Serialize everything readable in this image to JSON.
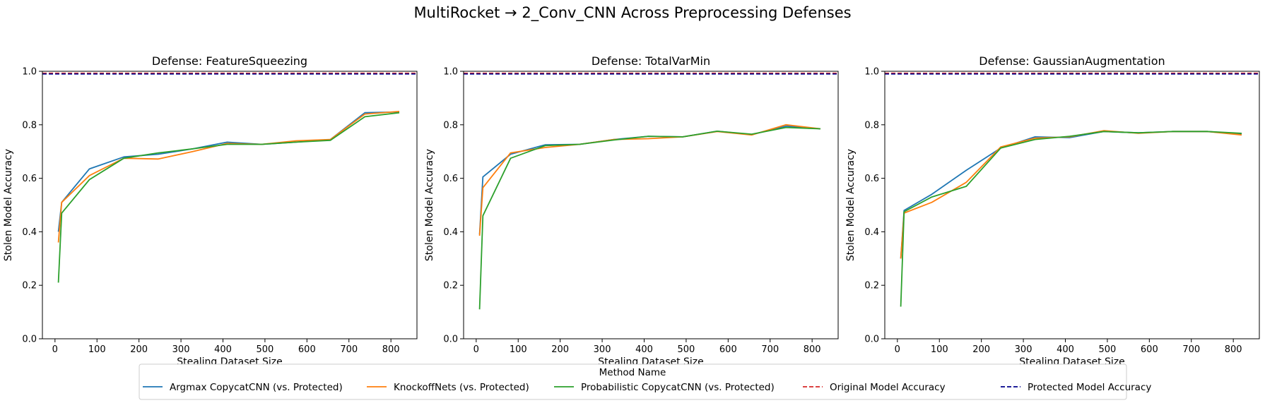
{
  "suptitle": "MultiRocket → 2_Conv_CNN Across Preprocessing Defenses",
  "chart_data": [
    {
      "type": "line",
      "title": "Defense: FeatureSqueezing",
      "xlabel": "Stealing Dataset Size",
      "ylabel": "Stolen Model Accuracy",
      "xlim": [
        -30,
        862
      ],
      "ylim": [
        0,
        1
      ],
      "xticks": [
        0,
        100,
        200,
        300,
        400,
        500,
        600,
        700,
        800
      ],
      "yticks": [
        "0.0",
        "0.2",
        "0.4",
        "0.6",
        "0.8",
        "1.0"
      ],
      "hlines": [
        {
          "name": "Original Model Accuracy",
          "y": 0.993
        },
        {
          "name": "Protected Model Accuracy",
          "y": 0.99
        }
      ],
      "series": [
        {
          "name": "Argmax CopycatCNN (vs. Protected)",
          "x": [
            8,
            16,
            82,
            164,
            246,
            328,
            410,
            492,
            574,
            656,
            738,
            820
          ],
          "y": [
            0.4,
            0.51,
            0.635,
            0.68,
            0.69,
            0.71,
            0.735,
            0.727,
            0.735,
            0.745,
            0.845,
            0.848
          ]
        },
        {
          "name": "KnockoffNets (vs. Protected)",
          "x": [
            8,
            16,
            82,
            164,
            246,
            328,
            410,
            492,
            574,
            656,
            738,
            820
          ],
          "y": [
            0.36,
            0.51,
            0.61,
            0.675,
            0.672,
            0.7,
            0.73,
            0.727,
            0.74,
            0.745,
            0.84,
            0.85
          ]
        },
        {
          "name": "Probabilistic CopycatCNN (vs. Protected)",
          "x": [
            8,
            16,
            82,
            164,
            246,
            328,
            410,
            492,
            574,
            656,
            738,
            820
          ],
          "y": [
            0.21,
            0.47,
            0.595,
            0.675,
            0.695,
            0.71,
            0.727,
            0.727,
            0.735,
            0.742,
            0.83,
            0.845
          ]
        }
      ]
    },
    {
      "type": "line",
      "title": "Defense: TotalVarMin",
      "xlabel": "Stealing Dataset Size",
      "ylabel": "Stolen Model Accuracy",
      "xlim": [
        -30,
        862
      ],
      "ylim": [
        0,
        1
      ],
      "xticks": [
        0,
        100,
        200,
        300,
        400,
        500,
        600,
        700,
        800
      ],
      "yticks": [
        "0.0",
        "0.2",
        "0.4",
        "0.6",
        "0.8",
        "1.0"
      ],
      "hlines": [
        {
          "name": "Original Model Accuracy",
          "y": 0.993
        },
        {
          "name": "Protected Model Accuracy",
          "y": 0.99
        }
      ],
      "series": [
        {
          "name": "Argmax CopycatCNN (vs. Protected)",
          "x": [
            8,
            16,
            82,
            164,
            246,
            328,
            410,
            492,
            574,
            656,
            738,
            820
          ],
          "y": [
            0.39,
            0.605,
            0.69,
            0.725,
            0.727,
            0.745,
            0.757,
            0.755,
            0.776,
            0.763,
            0.795,
            0.785
          ]
        },
        {
          "name": "KnockoffNets (vs. Protected)",
          "x": [
            8,
            16,
            82,
            164,
            246,
            328,
            410,
            492,
            574,
            656,
            738,
            820
          ],
          "y": [
            0.385,
            0.565,
            0.695,
            0.715,
            0.727,
            0.745,
            0.748,
            0.755,
            0.775,
            0.762,
            0.8,
            0.785
          ]
        },
        {
          "name": "Probabilistic CopycatCNN (vs. Protected)",
          "x": [
            8,
            16,
            82,
            164,
            246,
            328,
            410,
            492,
            574,
            656,
            738,
            820
          ],
          "y": [
            0.11,
            0.46,
            0.675,
            0.722,
            0.727,
            0.743,
            0.757,
            0.755,
            0.776,
            0.765,
            0.79,
            0.785
          ]
        }
      ]
    },
    {
      "type": "line",
      "title": "Defense: GaussianAugmentation",
      "xlabel": "Stealing Dataset Size",
      "ylabel": "Stolen Model Accuracy",
      "xlim": [
        -30,
        862
      ],
      "ylim": [
        0,
        1
      ],
      "xticks": [
        0,
        100,
        200,
        300,
        400,
        500,
        600,
        700,
        800
      ],
      "yticks": [
        "0.0",
        "0.2",
        "0.4",
        "0.6",
        "0.8",
        "1.0"
      ],
      "hlines": [
        {
          "name": "Original Model Accuracy",
          "y": 0.993
        },
        {
          "name": "Protected Model Accuracy",
          "y": 0.99
        }
      ],
      "series": [
        {
          "name": "Argmax CopycatCNN (vs. Protected)",
          "x": [
            8,
            16,
            82,
            164,
            246,
            328,
            410,
            492,
            574,
            656,
            738,
            820
          ],
          "y": [
            0.3,
            0.48,
            0.54,
            0.63,
            0.713,
            0.755,
            0.752,
            0.775,
            0.77,
            0.775,
            0.775,
            0.765
          ]
        },
        {
          "name": "KnockoffNets (vs. Protected)",
          "x": [
            8,
            16,
            82,
            164,
            246,
            328,
            410,
            492,
            574,
            656,
            738,
            820
          ],
          "y": [
            0.3,
            0.47,
            0.51,
            0.585,
            0.717,
            0.75,
            0.755,
            0.778,
            0.768,
            0.775,
            0.775,
            0.762
          ]
        },
        {
          "name": "Probabilistic CopycatCNN (vs. Protected)",
          "x": [
            8,
            16,
            82,
            164,
            246,
            328,
            410,
            492,
            574,
            656,
            738,
            820
          ],
          "y": [
            0.12,
            0.475,
            0.53,
            0.57,
            0.713,
            0.745,
            0.757,
            0.775,
            0.77,
            0.775,
            0.775,
            0.768
          ]
        }
      ]
    }
  ],
  "legend": {
    "title": "Method Name",
    "placement": "bottom-center",
    "items": [
      {
        "label": "Argmax CopycatCNN (vs. Protected)",
        "color": "#1f77b4",
        "style": "solid"
      },
      {
        "label": "KnockoffNets (vs. Protected)",
        "color": "#ff7f0e",
        "style": "solid"
      },
      {
        "label": "Probabilistic CopycatCNN (vs. Protected)",
        "color": "#2ca02c",
        "style": "solid"
      },
      {
        "label": "Original Model Accuracy",
        "color": "#d62728",
        "style": "dashed"
      },
      {
        "label": "Protected Model Accuracy",
        "color": "#00008b",
        "style": "dashed"
      }
    ]
  },
  "colors": {
    "series": [
      "#1f77b4",
      "#ff7f0e",
      "#2ca02c"
    ],
    "original": "#d62728",
    "protected": "#00008b"
  }
}
